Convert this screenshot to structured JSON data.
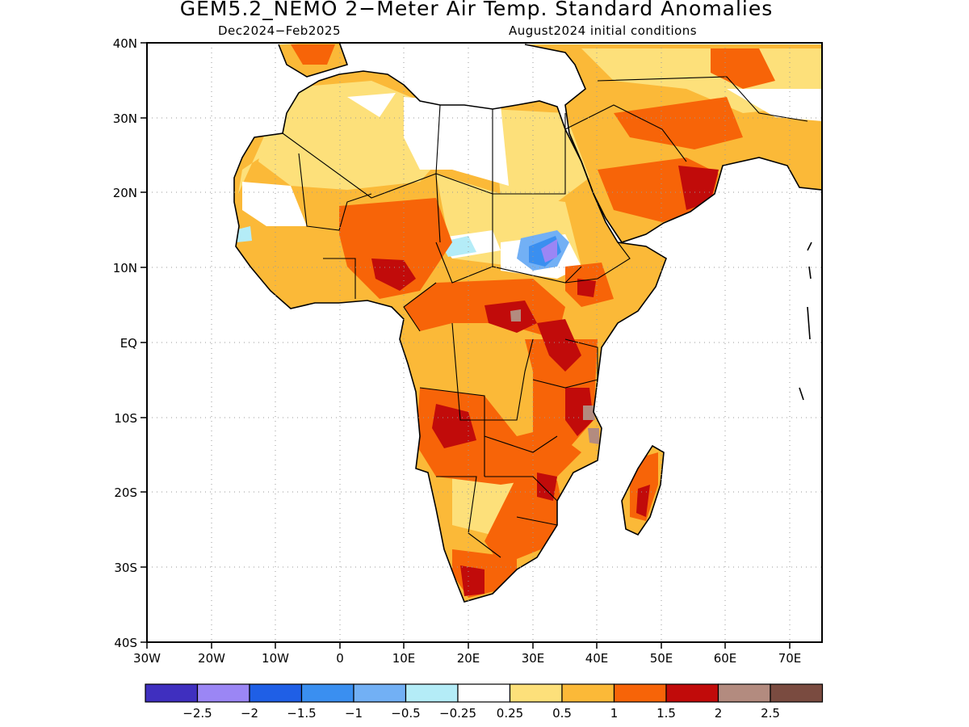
{
  "title": "GEM5.2_NEMO 2−Meter Air Temp. Standard Anomalies",
  "subtitle_left": "Dec2024−Feb2025",
  "subtitle_right": "August2024 initial conditions",
  "map": {
    "lat_labels": [
      "40N",
      "30N",
      "20N",
      "10N",
      "EQ",
      "10S",
      "20S",
      "30S",
      "40S"
    ],
    "lon_labels": [
      "30W",
      "20W",
      "10W",
      "0",
      "10E",
      "20E",
      "30E",
      "40E",
      "50E",
      "60E",
      "70E"
    ],
    "lon_range": [
      -30,
      75
    ],
    "lat_range": [
      -40,
      40
    ],
    "grid": "dotted"
  },
  "colorbar": {
    "colors": [
      "#3f2fbf",
      "#9b86f5",
      "#1f5fe6",
      "#3a8ff0",
      "#72b0f5",
      "#b4ecf7",
      "#ffffff",
      "#fde07a",
      "#fbb938",
      "#f76408",
      "#c10b0a",
      "#b38b7f",
      "#7a4b40"
    ],
    "labels": [
      "−2.5",
      "−2",
      "−1.5",
      "−1",
      "−0.5",
      "−0.25",
      "0.25",
      "0.5",
      "1",
      "1.5",
      "2",
      "2.5"
    ]
  }
}
